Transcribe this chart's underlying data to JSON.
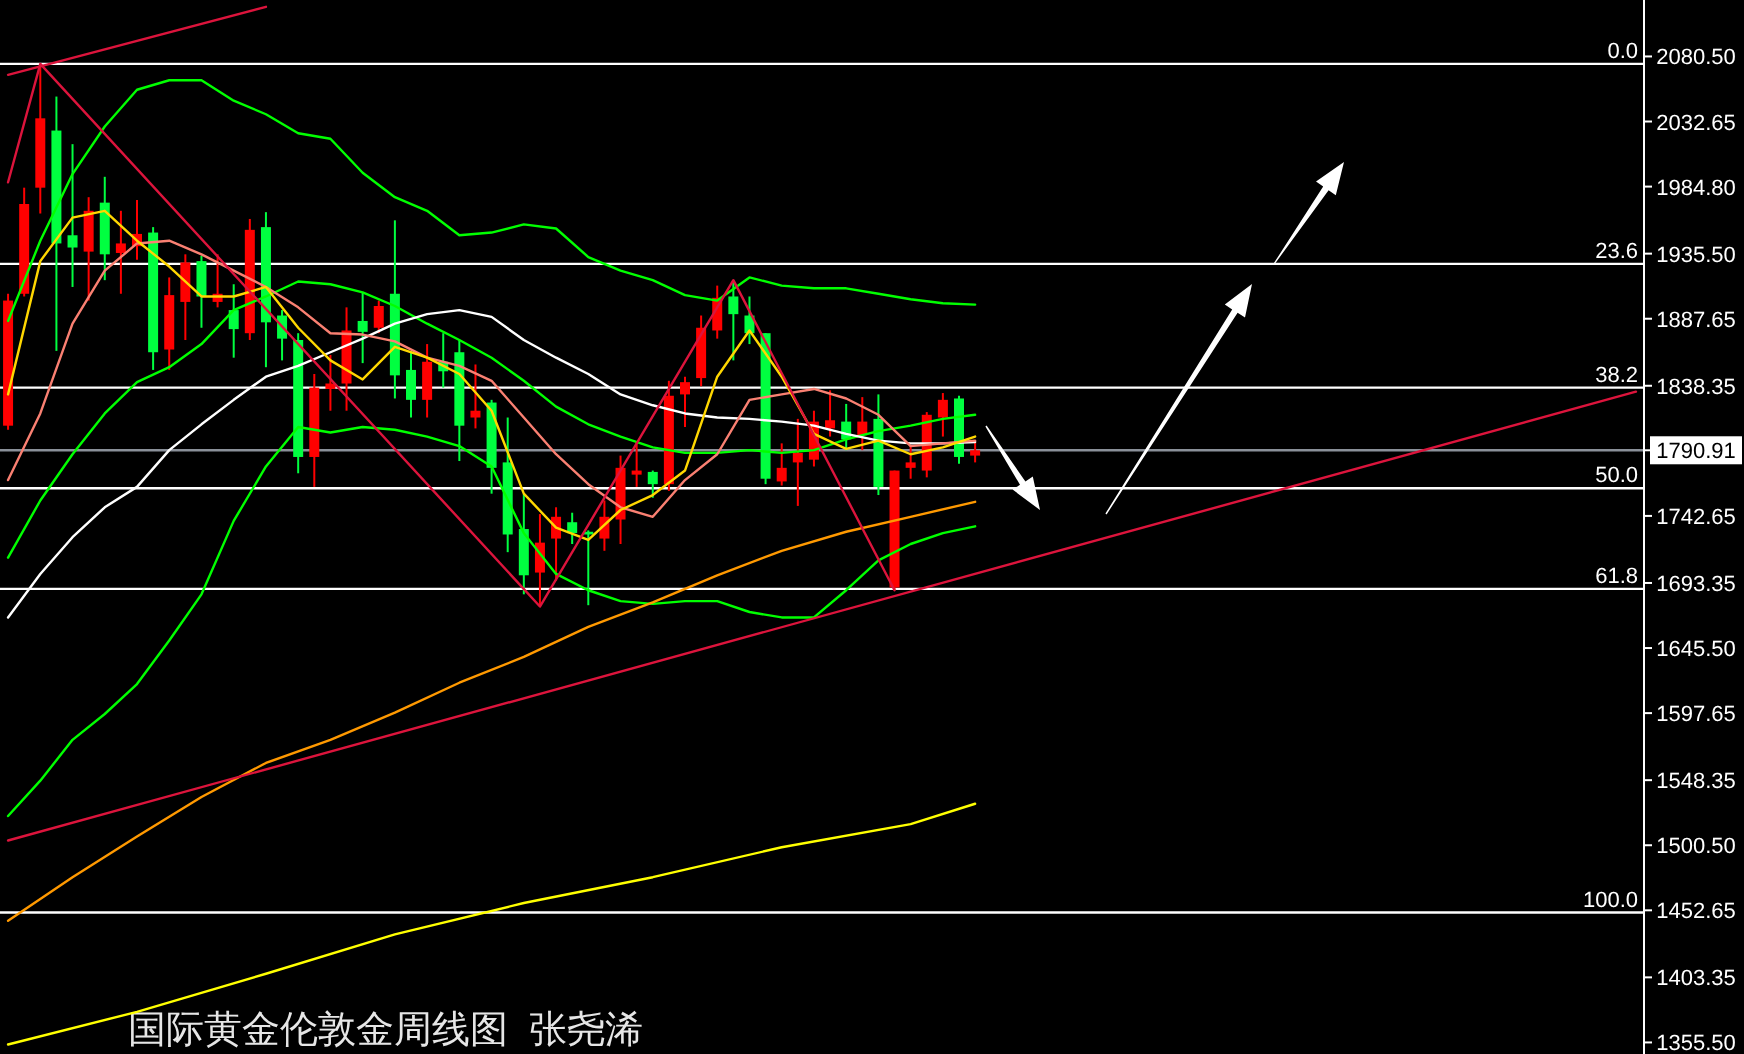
{
  "chart_data": {
    "type": "candlestick",
    "title": "国际黄金伦敦金周线图  张尧浠",
    "categories": [
      null,
      null,
      null,
      null,
      null,
      null,
      null,
      null,
      null,
      null,
      null,
      null,
      null,
      null,
      null,
      null,
      null,
      null,
      null,
      null,
      null,
      null,
      null,
      null,
      null,
      null,
      null,
      null,
      null,
      null,
      null,
      null,
      null,
      null,
      null,
      null,
      null,
      null,
      null,
      null,
      null,
      null,
      null,
      null,
      null,
      null,
      null,
      null,
      null,
      null,
      null,
      null,
      null,
      null,
      null,
      null,
      null,
      null,
      null,
      null,
      null,
      null,
      null,
      null,
      null,
      null,
      null,
      null,
      null,
      null,
      null,
      null,
      null,
      null,
      null,
      null,
      null,
      null,
      null,
      null,
      null,
      null,
      null,
      null,
      null,
      null,
      null,
      null,
      null,
      null,
      null,
      null,
      null,
      null,
      null,
      null,
      null,
      null,
      null,
      null,
      null,
      null
    ],
    "ohlc": [
      [
        1809,
        1906,
        1806,
        1901
      ],
      [
        1906,
        1984,
        1904,
        1972
      ],
      [
        1984,
        2075,
        1965,
        2035
      ],
      [
        2026,
        2051,
        1864,
        1943
      ],
      [
        1949,
        2016,
        1911,
        1940
      ],
      [
        1937,
        1977,
        1901,
        1967
      ],
      [
        1973,
        1992,
        1916,
        1935
      ],
      [
        1936,
        1967,
        1906,
        1943
      ],
      [
        1941,
        1975,
        1931,
        1950
      ],
      [
        1951,
        1955,
        1850,
        1863
      ],
      [
        1865,
        1918,
        1850,
        1905
      ],
      [
        1900,
        1935,
        1872,
        1929
      ],
      [
        1930,
        1934,
        1881,
        1904
      ],
      [
        1900,
        1935,
        1896,
        1906
      ],
      [
        1894,
        1913,
        1859,
        1880
      ],
      [
        1877,
        1961,
        1872,
        1953
      ],
      [
        1955,
        1966,
        1852,
        1885
      ],
      [
        1890,
        1894,
        1857,
        1873
      ],
      [
        1872,
        1877,
        1774,
        1786
      ],
      [
        1786,
        1847,
        1764,
        1837
      ],
      [
        1836,
        1861,
        1820,
        1840
      ],
      [
        1840,
        1896,
        1820,
        1879
      ],
      [
        1886,
        1907,
        1855,
        1878
      ],
      [
        1881,
        1901,
        1877,
        1897
      ],
      [
        1906,
        1960,
        1829,
        1846
      ],
      [
        1850,
        1864,
        1815,
        1828
      ],
      [
        1828,
        1869,
        1815,
        1856
      ],
      [
        1856,
        1877,
        1837,
        1849
      ],
      [
        1863,
        1872,
        1783,
        1809
      ],
      [
        1815,
        1854,
        1807,
        1820
      ],
      [
        1826,
        1828,
        1759,
        1778
      ],
      [
        1782,
        1815,
        1716,
        1729
      ],
      [
        1733,
        1759,
        1685,
        1699
      ],
      [
        1701,
        1744,
        1676,
        1723
      ],
      [
        1726,
        1749,
        1695,
        1742
      ],
      [
        1738,
        1745,
        1722,
        1730
      ],
      [
        1731,
        1732,
        1677,
        1729
      ],
      [
        1726,
        1754,
        1717,
        1742
      ],
      [
        1740,
        1787,
        1722,
        1778
      ],
      [
        1773,
        1797,
        1764,
        1776
      ],
      [
        1775,
        1776,
        1756,
        1766
      ],
      [
        1766,
        1842,
        1761,
        1831
      ],
      [
        1832,
        1845,
        1808,
        1841
      ],
      [
        1844,
        1890,
        1838,
        1881
      ],
      [
        1879,
        1912,
        1873,
        1903
      ],
      [
        1904,
        1916,
        1857,
        1891
      ],
      [
        1890,
        1904,
        1869,
        1877
      ],
      [
        1877,
        1877,
        1766,
        1770
      ],
      [
        1768,
        1796,
        1765,
        1778
      ],
      [
        1782,
        1814,
        1750,
        1789
      ],
      [
        1784,
        1820,
        1779,
        1812
      ],
      [
        1807,
        1835,
        1801,
        1813
      ],
      [
        1812,
        1825,
        1791,
        1799
      ],
      [
        1802,
        1830,
        1791,
        1812
      ],
      [
        1814,
        1832,
        1758,
        1764
      ],
      [
        1690,
        1776,
        1688,
        1776
      ],
      [
        1778,
        1794,
        1770,
        1782
      ],
      [
        1776,
        1819,
        1771,
        1817
      ],
      [
        1815,
        1833,
        1801,
        1828
      ],
      [
        1829,
        1831,
        1781,
        1786
      ],
      [
        1787,
        1798,
        1782,
        1790.91
      ],
      null,
      null,
      null,
      null,
      null,
      null,
      null,
      null,
      null,
      null,
      null,
      null,
      null,
      null,
      null,
      null,
      null,
      null,
      null,
      null,
      null,
      null,
      null,
      null,
      null,
      null,
      null,
      null,
      null,
      null,
      null,
      null,
      null,
      null,
      null,
      null,
      null,
      null,
      null,
      null,
      null
    ],
    "colors": [
      "#ff0000",
      "#ff0000",
      "#ff0000",
      "#00ff40",
      "#00ff40",
      "#ff0000",
      "#00ff40",
      "#ff0000",
      "#ff0000",
      "#00ff40",
      "#ff0000",
      "#ff0000",
      "#00ff40",
      "#ff0000",
      "#00ff40",
      "#ff0000",
      "#00ff40",
      "#00ff40",
      "#00ff40",
      "#ff0000",
      "#ff0000",
      "#ff0000",
      "#00ff40",
      "#ff0000",
      "#00ff40",
      "#00ff40",
      "#ff0000",
      "#00ff40",
      "#00ff40",
      "#ff0000",
      "#00ff40",
      "#00ff40",
      "#00ff40",
      "#ff0000",
      "#ff0000",
      "#00ff40",
      "#00ff40",
      "#ff0000",
      "#ff0000",
      "#ff0000",
      "#00ff40",
      "#ff0000",
      "#ff0000",
      "#ff0000",
      "#ff0000",
      "#00ff40",
      "#00ff40",
      "#00ff40",
      "#ff0000",
      "#ff0000",
      "#ff0000",
      "#ff0000",
      "#00ff40",
      "#ff0000",
      "#00ff40",
      "#ff0000",
      "#ff0000",
      "#ff0000",
      "#ff0000",
      "#00ff40",
      "#ff0000",
      null,
      null,
      null,
      null,
      null,
      null,
      null,
      null,
      null,
      null,
      null,
      null,
      null,
      null,
      null,
      null,
      null,
      null,
      null,
      null,
      null,
      null,
      null,
      null,
      null,
      null,
      null,
      null,
      null,
      null,
      null,
      null,
      null,
      null,
      null,
      null,
      null,
      null,
      null,
      null,
      null
    ],
    "series": [
      {
        "type": "line",
        "color": "#00ff00",
        "values": [
          1886,
          null,
          1945,
          null,
          1994,
          null,
          2029,
          null,
          2056,
          null,
          2063,
          null,
          2063,
          null,
          2048,
          null,
          2038,
          null,
          2024,
          null,
          2020,
          null,
          1995,
          null,
          1977,
          null,
          1967,
          null,
          1949,
          null,
          1951,
          null,
          1957,
          null,
          1954,
          null,
          1933,
          null,
          1923,
          null,
          1916,
          null,
          1905,
          null,
          1901,
          null,
          1918,
          null,
          1912,
          null,
          1910,
          null,
          1910,
          null,
          1906,
          null,
          1902,
          null,
          1899,
          null,
          1898,
          null,
          null,
          null,
          null,
          null,
          null,
          null,
          null,
          null,
          null,
          null,
          null,
          null,
          null,
          null,
          null,
          null,
          null,
          null,
          null,
          null,
          null,
          null,
          null,
          null,
          null,
          null,
          null,
          null,
          null,
          null,
          null,
          null,
          null,
          null,
          null,
          null,
          null,
          null,
          null,
          null
        ]
      },
      {
        "type": "line",
        "color": "#00ff00",
        "values": [
          1712,
          null,
          1754,
          null,
          1788,
          null,
          1818,
          null,
          1841,
          null,
          1852,
          null,
          1869,
          null,
          1894,
          null,
          1904,
          null,
          1915,
          null,
          1913,
          null,
          1907,
          null,
          1897,
          null,
          1884,
          null,
          1872,
          null,
          1859,
          null,
          1842,
          null,
          1823,
          null,
          1810,
          null,
          1801,
          null,
          1793,
          null,
          1789,
          null,
          1789,
          null,
          1791,
          null,
          1789,
          null,
          1791,
          null,
          1799,
          null,
          1805,
          null,
          1809,
          null,
          1814,
          null,
          1817,
          null,
          null,
          null,
          null,
          null,
          null,
          null,
          null,
          null,
          null,
          null,
          null,
          null,
          null,
          null,
          null,
          null,
          null,
          null,
          null,
          null,
          null,
          null,
          null,
          null,
          null,
          null,
          null,
          null,
          null,
          null,
          null,
          null,
          null,
          null,
          null,
          null,
          null,
          null,
          null,
          null
        ]
      },
      {
        "type": "line",
        "color": "#00ff00",
        "values": [
          1522,
          null,
          1548,
          null,
          1578,
          null,
          1597,
          null,
          1619,
          null,
          1651,
          null,
          1685,
          null,
          1739,
          null,
          1779,
          null,
          1808,
          null,
          1804,
          null,
          1808,
          null,
          1806,
          null,
          1801,
          null,
          1794,
          null,
          1779,
          null,
          1730,
          null,
          1700,
          null,
          1688,
          null,
          1680,
          null,
          1678,
          null,
          1680,
          null,
          1680,
          null,
          1672,
          null,
          1668,
          null,
          1668,
          null,
          1688,
          null,
          1710,
          null,
          1722,
          null,
          1730,
          null,
          1735,
          null,
          null,
          null,
          null,
          null,
          null,
          null,
          null,
          null,
          null,
          null,
          null,
          null,
          null,
          null,
          null,
          null,
          null,
          null,
          null,
          null,
          null,
          null,
          null,
          null,
          null,
          null,
          null,
          null,
          null,
          null,
          null,
          null,
          null,
          null,
          null,
          null,
          null,
          null,
          null,
          null
        ]
      },
      {
        "type": "line",
        "color": "#ffffff",
        "values": [
          1668,
          null,
          1700,
          null,
          1727,
          null,
          1749,
          null,
          1764,
          null,
          1791,
          null,
          1810,
          null,
          1828,
          null,
          1845,
          null,
          1853,
          null,
          1863,
          null,
          1873,
          null,
          1884,
          null,
          1891,
          null,
          1894,
          null,
          1889,
          null,
          1872,
          null,
          1859,
          null,
          1847,
          null,
          1832,
          null,
          1824,
          null,
          1818,
          null,
          1815,
          null,
          1814,
          null,
          1812,
          null,
          1809,
          null,
          1803,
          null,
          1798,
          null,
          1796,
          null,
          1796,
          null,
          1797,
          null,
          null,
          null,
          null,
          null,
          null,
          null,
          null,
          null,
          null,
          null,
          null,
          null,
          null,
          null,
          null,
          null,
          null,
          null,
          null,
          null,
          null,
          null,
          null,
          null,
          null,
          null,
          null,
          null,
          null,
          null,
          null,
          null,
          null,
          null,
          null,
          null,
          null,
          null,
          null,
          null
        ]
      },
      {
        "type": "line",
        "color": "#fa8072",
        "values": [
          1769,
          null,
          1818,
          null,
          1884,
          null,
          1923,
          null,
          1943,
          null,
          1945,
          null,
          1935,
          null,
          1923,
          null,
          1911,
          null,
          1896,
          null,
          1877,
          null,
          1876,
          null,
          1871,
          null,
          1859,
          null,
          1853,
          null,
          1842,
          null,
          1815,
          null,
          1788,
          null,
          1766,
          null,
          1749,
          null,
          1742,
          null,
          1769,
          null,
          1788,
          null,
          1828,
          null,
          1832,
          null,
          1836,
          null,
          1829,
          null,
          1817,
          null,
          1794,
          null,
          1796,
          null,
          1798,
          null,
          null,
          null,
          null,
          null,
          null,
          null,
          null,
          null,
          null,
          null,
          null,
          null,
          null,
          null,
          null,
          null,
          null,
          null,
          null,
          null,
          null,
          null,
          null,
          null,
          null,
          null,
          null,
          null,
          null,
          null,
          null,
          null,
          null,
          null,
          null,
          null,
          null,
          null,
          null,
          null
        ]
      },
      {
        "type": "line",
        "color": "#ffd700",
        "values": [
          1832,
          null,
          1930,
          null,
          1962,
          null,
          1967,
          null,
          1945,
          null,
          1926,
          null,
          1904,
          null,
          1904,
          null,
          1911,
          null,
          1881,
          null,
          1857,
          null,
          1843,
          null,
          1867,
          null,
          1859,
          null,
          1847,
          null,
          1820,
          null,
          1759,
          null,
          1734,
          null,
          1725,
          null,
          1747,
          null,
          1758,
          null,
          1776,
          null,
          1845,
          null,
          1879,
          null,
          1845,
          null,
          1803,
          null,
          1792,
          null,
          1798,
          null,
          1788,
          null,
          1793,
          null,
          1801,
          null,
          null,
          null,
          null,
          null,
          null,
          null,
          null,
          null,
          null,
          null,
          null,
          null,
          null,
          null,
          null,
          null,
          null,
          null,
          null,
          null,
          null,
          null,
          null,
          null,
          null,
          null,
          null,
          null,
          null,
          null,
          null,
          null,
          null,
          null,
          null,
          null,
          null,
          null,
          null,
          null
        ]
      },
      {
        "type": "line",
        "color": "#ff9900",
        "values": [
          1445,
          null,
          null,
          null,
          1477,
          null,
          null,
          null,
          1507,
          null,
          null,
          null,
          1536,
          null,
          null,
          null,
          1561,
          null,
          null,
          null,
          1578,
          null,
          null,
          null,
          1598,
          null,
          null,
          null,
          1620,
          null,
          null,
          null,
          1639,
          null,
          null,
          null,
          1661,
          null,
          null,
          null,
          1679,
          null,
          null,
          null,
          1699,
          null,
          null,
          null,
          1717,
          null,
          null,
          null,
          1731,
          null,
          null,
          null,
          1742,
          null,
          null,
          null,
          1753,
          null,
          null,
          null,
          null,
          null,
          null,
          null,
          null,
          null,
          null,
          null,
          null,
          null,
          null,
          null,
          null,
          null,
          null,
          null,
          null,
          null,
          null,
          null,
          null,
          null,
          null,
          null,
          null,
          null,
          null,
          null,
          null,
          null,
          null,
          null,
          null,
          null,
          null,
          null,
          null,
          null
        ]
      },
      {
        "type": "line",
        "color": "#ffff00",
        "values": [
          1354,
          null,
          null,
          null,
          null,
          null,
          null,
          null,
          1378,
          null,
          null,
          null,
          null,
          null,
          null,
          null,
          1406,
          null,
          null,
          null,
          null,
          null,
          null,
          null,
          1435,
          null,
          null,
          null,
          null,
          null,
          null,
          null,
          1458,
          null,
          null,
          null,
          null,
          null,
          null,
          null,
          1477,
          null,
          null,
          null,
          null,
          null,
          null,
          null,
          1499,
          null,
          null,
          null,
          null,
          null,
          null,
          null,
          1516,
          null,
          null,
          null,
          1531,
          null,
          null,
          null,
          null,
          null,
          null,
          null,
          null,
          null,
          null,
          null,
          null,
          null,
          null,
          null,
          null,
          null,
          null,
          null,
          null,
          null,
          null,
          null,
          null,
          null,
          null,
          null,
          null,
          null,
          null,
          null,
          null,
          null,
          null,
          null,
          null,
          null,
          null,
          null,
          null,
          null
        ]
      },
      {
        "type": "line",
        "color": "#dc143c",
        "values": [
          1504,
          null,
          null,
          null,
          null,
          null,
          null,
          null,
          null,
          null,
          null,
          null,
          null,
          null,
          null,
          null,
          null,
          null,
          null,
          null,
          null,
          null,
          null,
          null,
          null,
          null,
          null,
          null,
          null,
          null,
          null,
          null,
          null,
          null,
          null,
          null,
          null,
          null,
          null,
          null,
          null,
          null,
          null,
          null,
          null,
          null,
          null,
          null,
          null,
          null,
          null,
          null,
          null,
          null,
          null,
          null,
          null,
          null,
          null,
          null,
          null,
          null,
          null,
          null,
          null,
          null,
          null,
          null,
          null,
          null,
          null,
          null,
          null,
          null,
          null,
          null,
          null,
          null,
          null,
          null,
          null,
          null,
          null,
          null,
          null,
          null,
          null,
          null,
          null,
          null,
          null,
          null,
          null,
          null,
          null,
          null,
          null,
          null,
          null,
          null,
          null,
          1834
        ]
      },
      {
        "type": "line",
        "color": "#dc143c",
        "values": [
          2067,
          null,
          null,
          null,
          null,
          null,
          null,
          null,
          null,
          null,
          null,
          null,
          null,
          null,
          null,
          null,
          2117,
          null,
          null,
          null,
          null,
          null,
          null,
          null,
          null,
          null,
          null,
          null,
          null,
          null,
          null,
          null,
          null,
          null,
          null,
          null,
          null,
          null,
          null,
          null,
          null,
          null,
          null,
          null,
          null,
          null,
          null,
          null,
          null,
          null,
          null,
          null,
          null,
          null,
          null,
          null,
          null,
          null,
          null,
          null,
          null,
          null,
          null,
          null,
          null,
          null,
          null,
          null,
          null,
          null,
          null,
          null,
          null,
          null,
          null,
          null,
          null,
          null,
          null,
          null,
          null,
          null,
          null,
          null,
          null,
          null,
          null,
          null,
          null,
          null,
          null,
          null,
          null,
          null,
          null,
          null,
          null,
          null,
          null,
          null,
          null,
          null
        ]
      },
      {
        "type": "line",
        "color": "#dc143c",
        "values": [
          1988,
          null,
          2075,
          null,
          null,
          null,
          null,
          null,
          null,
          null,
          null,
          null,
          null,
          null,
          null,
          null,
          null,
          null,
          null,
          null,
          null,
          null,
          null,
          null,
          null,
          null,
          null,
          null,
          null,
          null,
          null,
          null,
          null,
          1676,
          null,
          null,
          null,
          null,
          null,
          null,
          null,
          null,
          null,
          null,
          null,
          1916,
          null,
          null,
          null,
          null,
          null,
          null,
          null,
          null,
          null,
          1688,
          null,
          null,
          null,
          null,
          null,
          null,
          null,
          null,
          null,
          null,
          null,
          null,
          null,
          null,
          null,
          null,
          null,
          null,
          null,
          null,
          null,
          null,
          null,
          null,
          null,
          null,
          null,
          null,
          null,
          null,
          null,
          null,
          null,
          null,
          null,
          null,
          null,
          null,
          null,
          null,
          null,
          null,
          null,
          null,
          null,
          null
        ]
      }
    ],
    "ref_lines": [
      {
        "axis": "y",
        "value": 2075,
        "color": "#ffffff"
      },
      {
        "axis": "y",
        "value": 1928,
        "color": "#ffffff"
      },
      {
        "axis": "y",
        "value": 1837,
        "color": "#ffffff"
      },
      {
        "axis": "y",
        "value": 1763,
        "color": "#ffffff"
      },
      {
        "axis": "y",
        "value": 1689,
        "color": "#ffffff"
      },
      {
        "axis": "y",
        "value": 1451,
        "color": "#ffffff"
      },
      {
        "axis": "y",
        "value": 1790.91,
        "color": "#8a9099"
      }
    ],
    "annotations": [
      {
        "text": "0.0",
        "y": 2075
      },
      {
        "text": "23.6",
        "y": 1928
      },
      {
        "text": "38.2",
        "y": 1837
      },
      {
        "text": "50.0",
        "y": 1763
      },
      {
        "text": "61.8",
        "y": 1689
      },
      {
        "text": "100.0",
        "y": 1451
      }
    ],
    "ylim": [
      1347,
      2122
    ],
    "yticks": [
      {
        "value": 2080.5,
        "label": "2080.50"
      },
      {
        "value": 2032.65,
        "label": "2032.65"
      },
      {
        "value": 1984.8,
        "label": "1984.80"
      },
      {
        "value": 1935.5,
        "label": "1935.50"
      },
      {
        "value": 1887.65,
        "label": "1887.65"
      },
      {
        "value": 1838.35,
        "label": "1838.35"
      },
      {
        "value": 1790.91,
        "label": "1790.91"
      },
      {
        "value": 1742.65,
        "label": "1742.65"
      },
      {
        "value": 1693.35,
        "label": "1693.35"
      },
      {
        "value": 1645.5,
        "label": "1645.50"
      },
      {
        "value": 1597.65,
        "label": "1597.65"
      },
      {
        "value": 1548.35,
        "label": "1548.35"
      },
      {
        "value": 1500.5,
        "label": "1500.50"
      },
      {
        "value": 1452.65,
        "label": "1452.65"
      },
      {
        "value": 1403.35,
        "label": "1403.35"
      },
      {
        "value": 1355.5,
        "label": "1355.50"
      }
    ],
    "tick_labels": "y"
  }
}
